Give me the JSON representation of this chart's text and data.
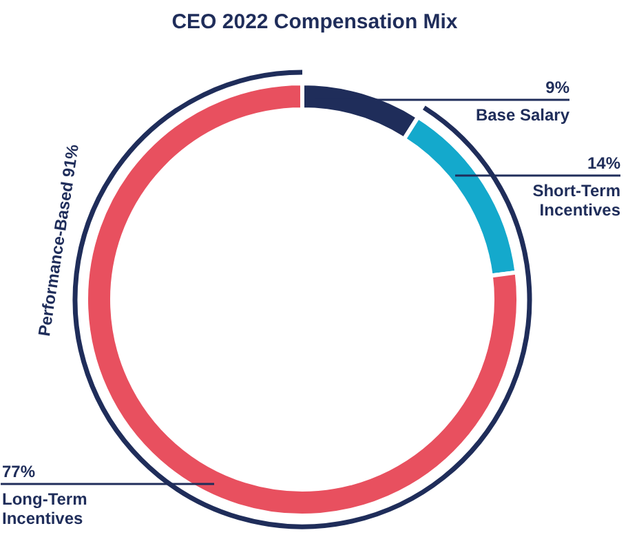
{
  "chart_data": {
    "type": "donut",
    "title": "CEO 2022 Compensation Mix",
    "categories": [
      "Base Salary",
      "Short-Term\nIncentives",
      "Long-Term\nIncentives"
    ],
    "values": [
      9,
      14,
      77
    ],
    "colors": [
      "#1f2d5a",
      "#14a9cc",
      "#e8505f"
    ],
    "value_labels": [
      "9%",
      "14%",
      "77%"
    ],
    "annotations": [
      "Performance-Based 91%"
    ]
  }
}
